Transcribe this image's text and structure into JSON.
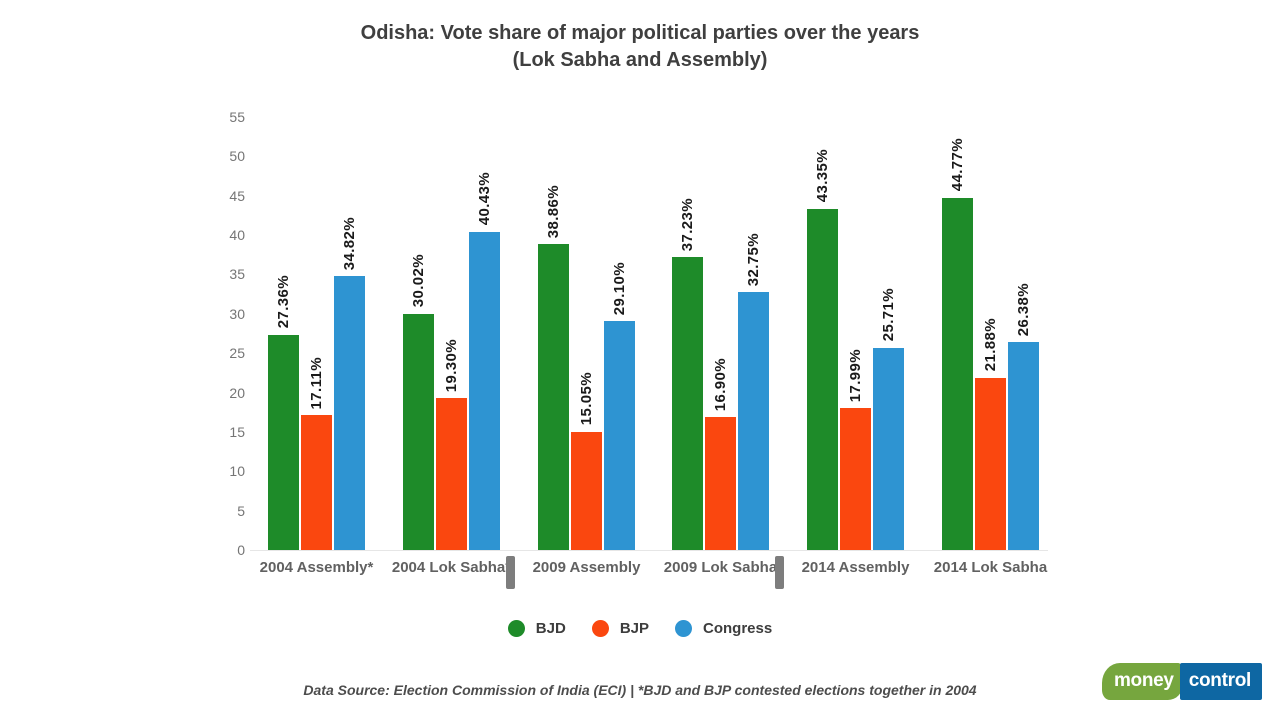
{
  "title": {
    "line1": "Odisha: Vote share of major political parties over the years",
    "line2": "(Lok Sabha and Assembly)"
  },
  "chart_data": {
    "type": "bar",
    "title": "Odisha: Vote share of major political parties over the years (Lok Sabha and Assembly)",
    "categories": [
      "2004 Assembly*",
      "2004 Lok Sabha*",
      "2009 Assembly",
      "2009 Lok Sabha",
      "2014 Assembly",
      "2014 Lok Sabha"
    ],
    "series": [
      {
        "name": "BJD",
        "color": "#1e8b29",
        "values": [
          27.36,
          30.02,
          38.86,
          37.23,
          43.35,
          44.77
        ]
      },
      {
        "name": "BJP",
        "color": "#fa470f",
        "values": [
          17.11,
          19.3,
          15.05,
          16.9,
          17.99,
          21.88
        ]
      },
      {
        "name": "Congress",
        "color": "#2e94d2",
        "values": [
          34.82,
          40.43,
          29.1,
          32.75,
          25.71,
          26.38
        ]
      }
    ],
    "ylim": [
      0,
      55
    ],
    "yticks": [
      0,
      5,
      10,
      15,
      20,
      25,
      30,
      35,
      40,
      45,
      50,
      55
    ],
    "grid": false,
    "legend_position": "bottom",
    "value_label_decimals": 2,
    "value_label_suffix": "%",
    "group_separators_after": [
      1,
      3
    ]
  },
  "footer": {
    "source_text": "Data Source: Election Commission of India (ECI) | *BJD and BJP contested elections together in 2004"
  },
  "logo": {
    "money": "money",
    "control": "control"
  },
  "colors": {
    "bjd_green": "#1e8b29",
    "bjp_orange": "#fa470f",
    "congress_blue": "#2e94d2",
    "separator_gray": "#7d7d7d",
    "logo_green": "#76a63e",
    "logo_blue": "#0e67a3"
  }
}
